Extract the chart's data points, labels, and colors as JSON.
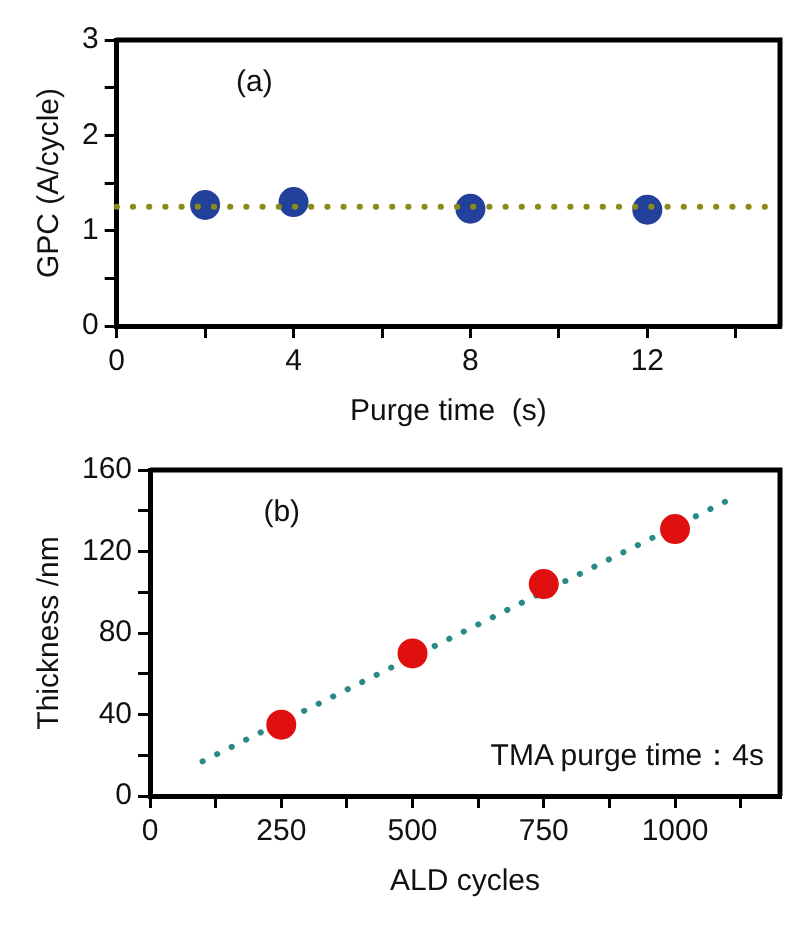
{
  "chart_data": [
    {
      "type": "scatter",
      "xlabel": "Purge time  (s)",
      "ylabel": "GPC (A/cycle)",
      "annotations": [
        "(a)"
      ],
      "xlim": [
        0,
        15
      ],
      "ylim": [
        0,
        3
      ],
      "xticks": [
        0,
        {
          "value": 2,
          "label": null
        },
        4,
        {
          "value": 6,
          "label": null
        },
        8,
        {
          "value": 10,
          "label": null
        },
        12,
        {
          "value": 14,
          "label": null
        }
      ],
      "yticks": [
        0,
        {
          "value": 0.5,
          "label": null
        },
        1,
        {
          "value": 1.5,
          "label": null
        },
        2,
        {
          "value": 2.5,
          "label": null
        },
        3
      ],
      "grid": false,
      "legend": false,
      "marker": "circle",
      "series": [
        {
          "color": "#23409a",
          "x": [
            2,
            4,
            8,
            12
          ],
          "values": [
            1.27,
            1.3,
            1.23,
            1.22
          ]
        }
      ],
      "ref_lines": [
        {
          "axis": "y",
          "value": 1.25,
          "color": "#8b8b1a",
          "line_style": "dotted"
        }
      ]
    },
    {
      "type": "scatter",
      "xlabel": "ALD cycles",
      "ylabel": "Thickness /nm",
      "annotations": [
        "(b)",
        "TMA purge time：4s"
      ],
      "xlim": [
        0,
        1200
      ],
      "ylim": [
        0,
        160
      ],
      "xticks": [
        0,
        {
          "value": 125,
          "label": null
        },
        250,
        {
          "value": 375,
          "label": null
        },
        500,
        {
          "value": 625,
          "label": null
        },
        750,
        {
          "value": 875,
          "label": null
        },
        1000,
        {
          "value": 1125,
          "label": null
        }
      ],
      "yticks": [
        0,
        {
          "value": 20,
          "label": null
        },
        40,
        {
          "value": 60,
          "label": null
        },
        80,
        {
          "value": 100,
          "label": null
        },
        120,
        {
          "value": 140,
          "label": null
        },
        160
      ],
      "grid": false,
      "legend": false,
      "marker": "circle",
      "series": [
        {
          "color": "#e01010",
          "x": [
            250,
            500,
            750,
            1000
          ],
          "values": [
            35,
            70,
            104,
            131
          ]
        },
        {
          "type": "line",
          "line_style": "dotted",
          "marker": "none",
          "color": "#2a8a8a",
          "x": [
            100,
            1100
          ],
          "values": [
            17,
            145
          ]
        }
      ]
    }
  ]
}
